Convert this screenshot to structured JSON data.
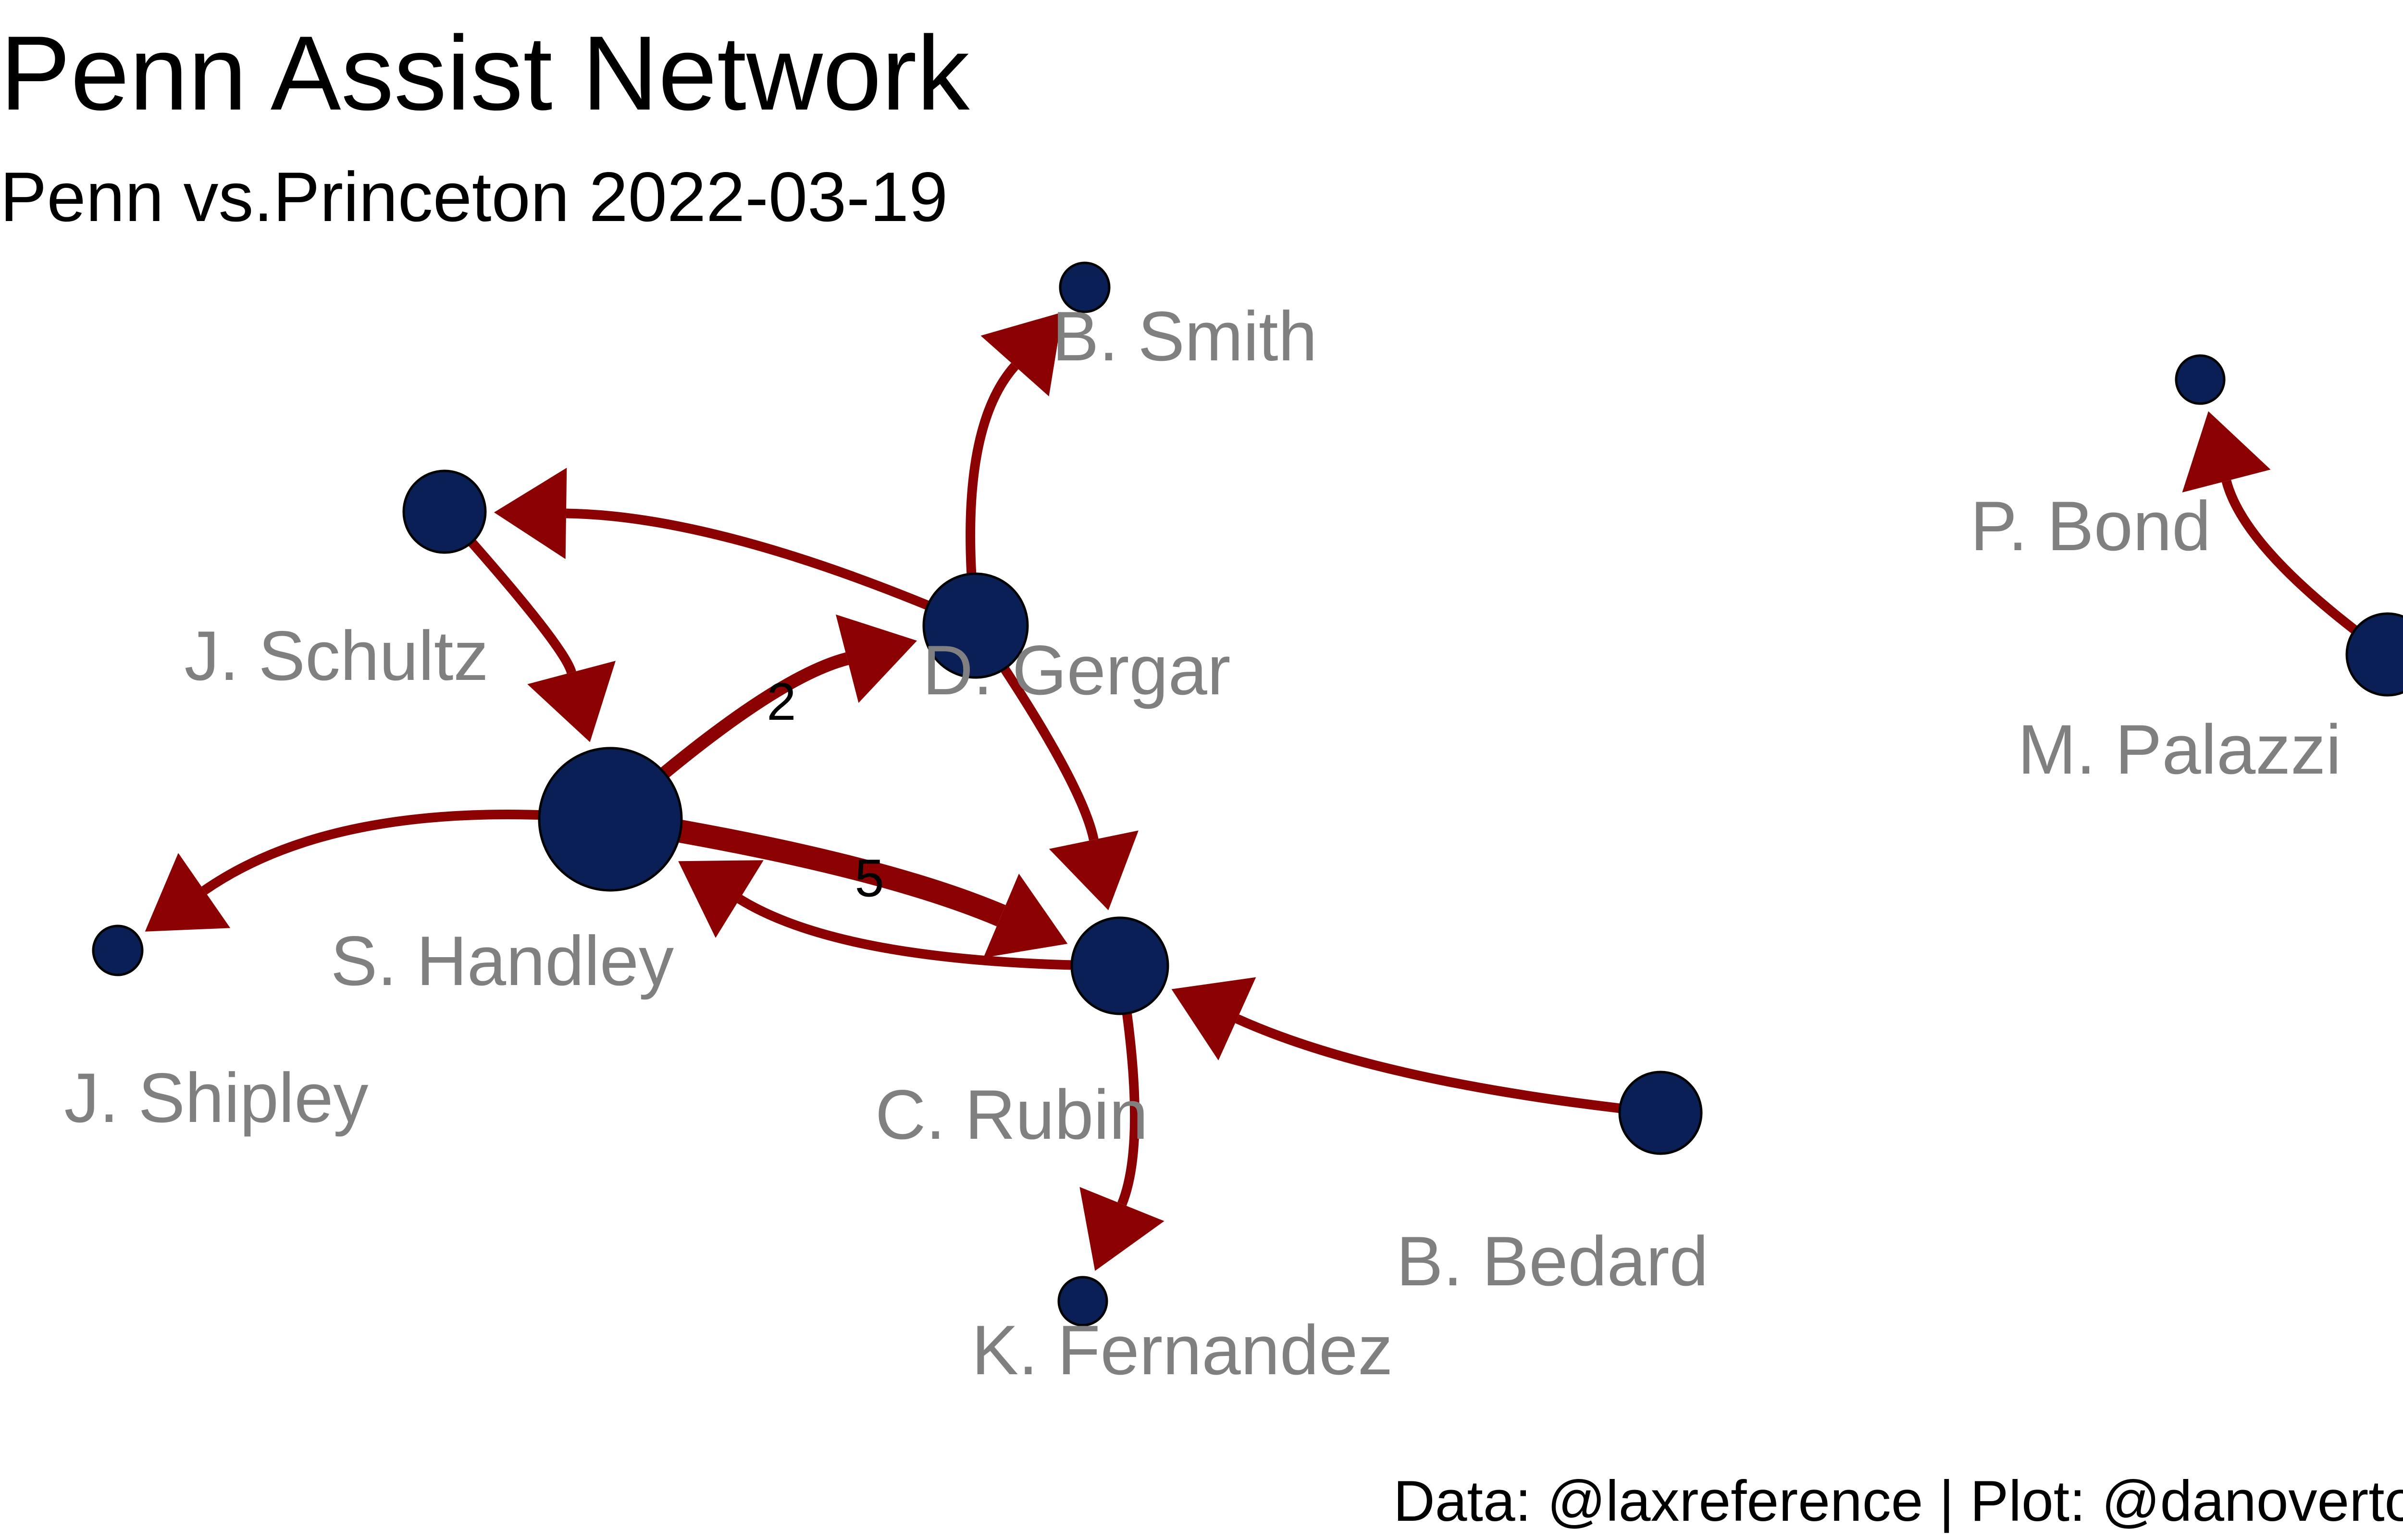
{
  "title": "Penn Assist Network",
  "subtitle": "Penn vs.Princeton 2022-03-19",
  "caption": "Data: @laxreference | Plot: @danovertoom",
  "colors": {
    "edge": "#8b0000",
    "node_fill": "#0a1f55",
    "node_stroke": "#000000",
    "node_label": "#808080",
    "title_text": "#000000",
    "edge_label": "#000000"
  },
  "nodes": [
    {
      "id": "s-handley",
      "label": "S. Handley"
    },
    {
      "id": "d-gergar",
      "label": "D. Gergar"
    },
    {
      "id": "j-schultz",
      "label": "J. Schultz"
    },
    {
      "id": "b-smith",
      "label": "B. Smith"
    },
    {
      "id": "c-rubin",
      "label": "C. Rubin"
    },
    {
      "id": "j-shipley",
      "label": "J. Shipley"
    },
    {
      "id": "k-fernandez",
      "label": "K. Fernandez"
    },
    {
      "id": "b-bedard",
      "label": "B. Bedard"
    },
    {
      "id": "p-bond",
      "label": "P. Bond"
    },
    {
      "id": "m-palazzi",
      "label": "M. Palazzi"
    }
  ],
  "edges": [
    {
      "from": "j-schultz",
      "to": "s-handley",
      "weight": 1,
      "label": ""
    },
    {
      "from": "s-handley",
      "to": "d-gergar",
      "weight": 2,
      "label": "2"
    },
    {
      "from": "d-gergar",
      "to": "j-schultz",
      "weight": 1,
      "label": ""
    },
    {
      "from": "d-gergar",
      "to": "b-smith",
      "weight": 1,
      "label": ""
    },
    {
      "from": "d-gergar",
      "to": "c-rubin",
      "weight": 1,
      "label": ""
    },
    {
      "from": "s-handley",
      "to": "c-rubin",
      "weight": 5,
      "label": "5"
    },
    {
      "from": "c-rubin",
      "to": "s-handley",
      "weight": 1,
      "label": ""
    },
    {
      "from": "s-handley",
      "to": "j-shipley",
      "weight": 1,
      "label": ""
    },
    {
      "from": "c-rubin",
      "to": "k-fernandez",
      "weight": 1,
      "label": ""
    },
    {
      "from": "b-bedard",
      "to": "c-rubin",
      "weight": 1,
      "label": ""
    },
    {
      "from": "m-palazzi",
      "to": "p-bond",
      "weight": 1,
      "label": ""
    }
  ]
}
